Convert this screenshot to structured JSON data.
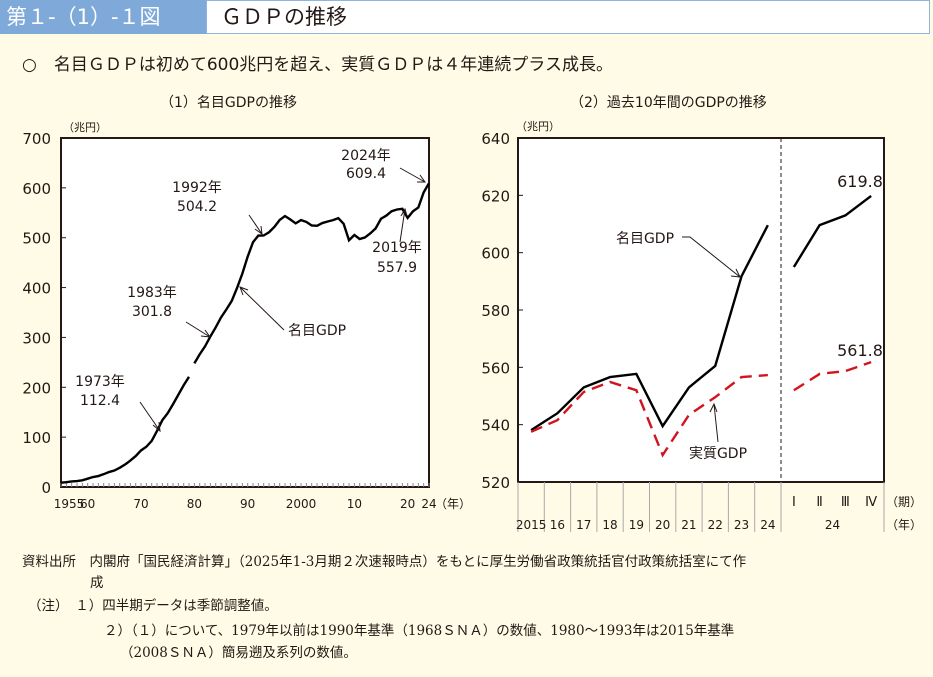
{
  "header": {
    "figure_number": "第１-（1）-１図",
    "title": "ＧＤＰの推移"
  },
  "lead": "○　名目ＧＤＰは初めて600兆円を超え、実質ＧＤＰは４年連続プラス成長。",
  "notes": {
    "source": "資料出所　内閣府「国民経済計算」（2025年1-3月期２次速報時点）をもとに厚生労働省政策統括官付政策統括室にて作",
    "source_cont": "成",
    "note1": "（注）　１）四半期データは季節調整値。",
    "note2": "２）（１）について、1979年以前は1990年基準（1968ＳＮＡ）の数値、1980～1993年は2015年基準",
    "note2_cont": "（2008ＳＮＡ）簡易遡及系列の数値。"
  },
  "colors": {
    "header": "#7ea9d9",
    "nominal": "#000000",
    "real": "#d2141e",
    "background": "#fffbe6"
  },
  "chart_data": [
    {
      "type": "line",
      "title": "（1）名目GDPの推移",
      "ylabel": "（兆円）",
      "xlabel": "（年）",
      "ylim": [
        0,
        700
      ],
      "yticks": [
        0,
        100,
        200,
        300,
        400,
        500,
        600,
        700
      ],
      "xlim": [
        1955,
        2024
      ],
      "xtick_values": [
        1955,
        1960,
        1970,
        1980,
        1990,
        2000,
        2010,
        2020,
        2024
      ],
      "xtick_labels": [
        "1955",
        "60",
        "70",
        "80",
        "90",
        "2000",
        "10",
        "20",
        "24"
      ],
      "grid": false,
      "series": [
        {
          "name": "名目GDP",
          "segments": [
            {
              "x": [
                1955,
                1956,
                1957,
                1958,
                1959,
                1960,
                1961,
                1962,
                1963,
                1964,
                1965,
                1966,
                1967,
                1968,
                1969,
                1970,
                1971,
                1972,
                1973,
                1974,
                1975,
                1976,
                1977,
                1978,
                1979
              ],
              "y": [
                8.6,
                9.6,
                11.1,
                12.0,
                13.5,
                16.7,
                20.0,
                22.0,
                25.7,
                30.0,
                33.0,
                38.5,
                45.0,
                53.0,
                62.0,
                73.3,
                80.7,
                92.4,
                112.4,
                134,
                148,
                166,
                185,
                204,
                221
              ]
            },
            {
              "x": [
                1980,
                1981,
                1982,
                1983,
                1984,
                1985,
                1986,
                1987,
                1988,
                1989,
                1990,
                1991,
                1992,
                1993,
                1994,
                1995,
                1996,
                1997,
                1998,
                1999,
                2000,
                2001,
                2002,
                2003,
                2004,
                2005,
                2006,
                2007,
                2008,
                2009,
                2010,
                2011,
                2012,
                2013,
                2014,
                2015,
                2016,
                2017,
                2018,
                2019,
                2020,
                2021,
                2022,
                2023,
                2024
              ],
              "y": [
                248,
                266,
                282,
                301.8,
                320,
                340,
                356,
                373,
                399,
                428,
                462,
                491,
                504.2,
                504.5,
                510.9,
                521.6,
                535.6,
                543.5,
                536.5,
                528.8,
                535.4,
                531.7,
                524.5,
                523.9,
                529.4,
                532.5,
                535.2,
                539.3,
                527.8,
                494.9,
                505.5,
                497.4,
                500.5,
                508.7,
                518.8,
                538.0,
                544.4,
                553.1,
                556.6,
                557.9,
                539.8,
                553.0,
                560.6,
                591.0,
                609.4
              ]
            }
          ]
        }
      ],
      "annotations": [
        {
          "year": "1973年",
          "value": "112.4"
        },
        {
          "year": "1983年",
          "value": "301.8"
        },
        {
          "year": "1992年",
          "value": "504.2"
        },
        {
          "year": "2024年",
          "value": "609.4"
        },
        {
          "year": "2019年",
          "value": "557.9"
        },
        {
          "label": "名目GDP"
        }
      ]
    },
    {
      "type": "line",
      "title": "（2）過去10年間のGDPの推移",
      "ylabel": "（兆円）",
      "ylim": [
        520,
        640
      ],
      "yticks": [
        520,
        540,
        560,
        580,
        600,
        620,
        640
      ],
      "grid": false,
      "categories_annual": [
        "2015",
        "16",
        "17",
        "18",
        "19",
        "20",
        "21",
        "22",
        "23",
        "24"
      ],
      "categories_quarterly": [
        "Ⅰ",
        "Ⅱ",
        "Ⅲ",
        "Ⅳ"
      ],
      "quarter_year": "24",
      "quarter_unit": "（期）",
      "year_unit": "（年）",
      "series": [
        {
          "name": "名目GDP",
          "style": "solid",
          "annual": [
            538.1,
            544.0,
            553.0,
            556.6,
            557.7,
            539.5,
            553.0,
            560.5,
            591.8,
            609.6
          ],
          "quarterly": [
            595.0,
            609.6,
            613.0,
            619.8
          ]
        },
        {
          "name": "実質GDP",
          "style": "dashed",
          "annual": [
            537.5,
            541.6,
            551.4,
            554.9,
            552.0,
            529.4,
            543.4,
            549.6,
            556.6,
            557.3
          ],
          "quarterly": [
            552.0,
            557.7,
            558.7,
            561.8
          ]
        }
      ],
      "annotations": {
        "nominal_q4": "619.8",
        "real_q4": "561.8"
      }
    }
  ]
}
